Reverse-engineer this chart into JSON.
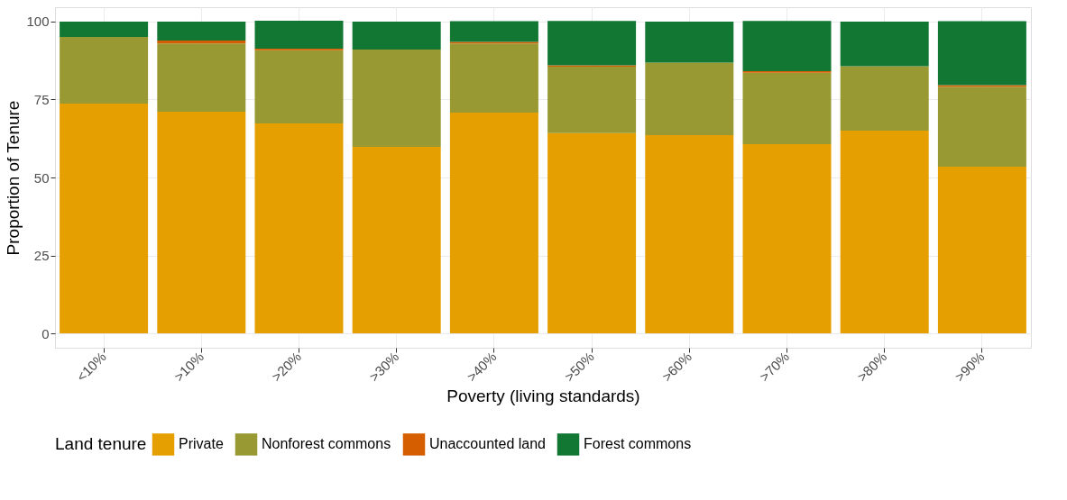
{
  "chart_data": {
    "type": "bar",
    "stacked": true,
    "xlabel": "Poverty (living standards)",
    "ylabel": "Proportion of Tenure",
    "legend_title": "Land tenure",
    "legend": "bottom",
    "grid": true,
    "categories": [
      "<10%",
      ">10%",
      ">20%",
      ">30%",
      ">40%",
      ">50%",
      ">60%",
      ">70%",
      ">80%",
      ">90%"
    ],
    "ylim": [
      -4.6,
      104.6
    ],
    "yticks": [
      0,
      25,
      50,
      75,
      100
    ],
    "series": [
      {
        "name": "Private",
        "color": "#e69f00",
        "values": [
          73.7,
          71.1,
          67.3,
          59.8,
          70.8,
          64.2,
          63.6,
          60.7,
          65.0,
          53.5
        ]
      },
      {
        "name": "Nonforest commons",
        "color": "#999933",
        "values": [
          21.4,
          21.9,
          23.5,
          31.2,
          22.2,
          21.3,
          23.2,
          22.9,
          20.7,
          25.6
        ]
      },
      {
        "name": "Unaccounted land",
        "color": "#d55e00",
        "values": [
          0,
          0.9,
          0.5,
          0,
          0.5,
          0.5,
          0,
          0.5,
          0,
          0.5
        ]
      },
      {
        "name": "Forest commons",
        "color": "#117733",
        "values": [
          4.9,
          6.1,
          9.0,
          9.0,
          6.6,
          14.2,
          13.2,
          16.1,
          14.3,
          20.5
        ]
      }
    ]
  }
}
